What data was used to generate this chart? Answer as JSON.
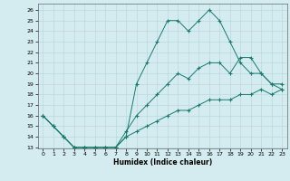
{
  "background_color": "#d4ecf0",
  "grid_color": "#b8d8de",
  "line_color": "#1a7a6e",
  "ylim_min": 13,
  "ylim_max": 26.5,
  "xlim_min": -0.5,
  "xlim_max": 23.5,
  "yticks": [
    13,
    14,
    15,
    16,
    17,
    18,
    19,
    20,
    21,
    22,
    23,
    24,
    25,
    26
  ],
  "xticks": [
    0,
    1,
    2,
    3,
    4,
    5,
    6,
    7,
    8,
    9,
    10,
    11,
    12,
    13,
    14,
    15,
    16,
    17,
    18,
    19,
    20,
    21,
    22,
    23
  ],
  "xlabel": "Humidex (Indice chaleur)",
  "series1_x": [
    0,
    1,
    2,
    3,
    4,
    5,
    6,
    7,
    8,
    9,
    10,
    11,
    12,
    13,
    14,
    15,
    16,
    17,
    18,
    19,
    20,
    21,
    22,
    23
  ],
  "series1_y": [
    16,
    15,
    14,
    13,
    13,
    13,
    13,
    13,
    14,
    19,
    21,
    23,
    25,
    25,
    24,
    25,
    26,
    25,
    23,
    21,
    20,
    20,
    19,
    18.5
  ],
  "series2_x": [
    0,
    1,
    2,
    3,
    4,
    5,
    6,
    7,
    8,
    9,
    10,
    11,
    12,
    13,
    14,
    15,
    16,
    17,
    18,
    19,
    20,
    21,
    22,
    23
  ],
  "series2_y": [
    16,
    15,
    14,
    13,
    13,
    13,
    13,
    13,
    14.5,
    16,
    17,
    18,
    19,
    20,
    19.5,
    20.5,
    21,
    21,
    20,
    21.5,
    21.5,
    20,
    19,
    19
  ],
  "series3_x": [
    0,
    1,
    2,
    3,
    4,
    5,
    6,
    7,
    8,
    9,
    10,
    11,
    12,
    13,
    14,
    15,
    16,
    17,
    18,
    19,
    20,
    21,
    22,
    23
  ],
  "series3_y": [
    16,
    15,
    14,
    13,
    13,
    13,
    13,
    13,
    14,
    14.5,
    15,
    15.5,
    16,
    16.5,
    16.5,
    17,
    17.5,
    17.5,
    17.5,
    18,
    18,
    18.5,
    18,
    18.5
  ]
}
